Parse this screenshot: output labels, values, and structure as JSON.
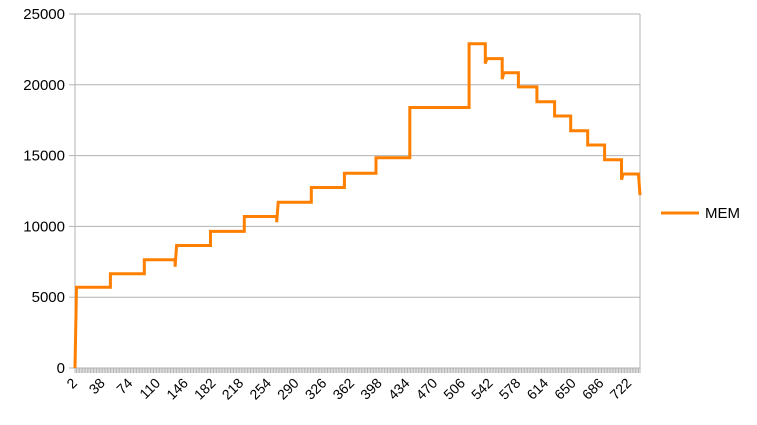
{
  "chart_data": {
    "type": "line",
    "title": "",
    "xlabel": "",
    "ylabel": "",
    "ylim": [
      0,
      25000
    ],
    "yticks": [
      0,
      5000,
      10000,
      15000,
      20000,
      25000
    ],
    "xlim": [
      2,
      736
    ],
    "xtick_labels": [
      "2",
      "38",
      "74",
      "110",
      "146",
      "182",
      "218",
      "254",
      "290",
      "326",
      "362",
      "398",
      "434",
      "470",
      "506",
      "542",
      "578",
      "614",
      "650",
      "686",
      "722"
    ],
    "grid": true,
    "legend_position": "right",
    "colors": {
      "series": "#ff8000",
      "grid": "#b3b3b3",
      "axis": "#b3b3b3"
    },
    "series": [
      {
        "name": "MEM",
        "points": [
          [
            2,
            0
          ],
          [
            4,
            5700
          ],
          [
            48,
            5700
          ],
          [
            48,
            6650
          ],
          [
            92,
            6650
          ],
          [
            92,
            7650
          ],
          [
            132,
            7650
          ],
          [
            132,
            7150
          ],
          [
            134,
            8650
          ],
          [
            178,
            8650
          ],
          [
            178,
            9650
          ],
          [
            222,
            9650
          ],
          [
            222,
            10700
          ],
          [
            264,
            10700
          ],
          [
            264,
            10300
          ],
          [
            266,
            11700
          ],
          [
            309,
            11700
          ],
          [
            309,
            12750
          ],
          [
            352,
            12750
          ],
          [
            352,
            13750
          ],
          [
            393,
            13750
          ],
          [
            393,
            14850
          ],
          [
            437,
            14850
          ],
          [
            437,
            18400
          ],
          [
            514,
            18400
          ],
          [
            514,
            22900
          ],
          [
            535,
            22900
          ],
          [
            535,
            21500
          ],
          [
            537,
            21850
          ],
          [
            557,
            21850
          ],
          [
            557,
            20400
          ],
          [
            559,
            20850
          ],
          [
            578,
            20850
          ],
          [
            578,
            19850
          ],
          [
            602,
            19850
          ],
          [
            602,
            18800
          ],
          [
            625,
            18800
          ],
          [
            625,
            17800
          ],
          [
            646,
            17800
          ],
          [
            646,
            16750
          ],
          [
            668,
            16750
          ],
          [
            668,
            15750
          ],
          [
            690,
            15750
          ],
          [
            690,
            14700
          ],
          [
            712,
            14700
          ],
          [
            712,
            13300
          ],
          [
            714,
            13700
          ],
          [
            734,
            13700
          ],
          [
            736,
            12200
          ]
        ]
      }
    ]
  }
}
